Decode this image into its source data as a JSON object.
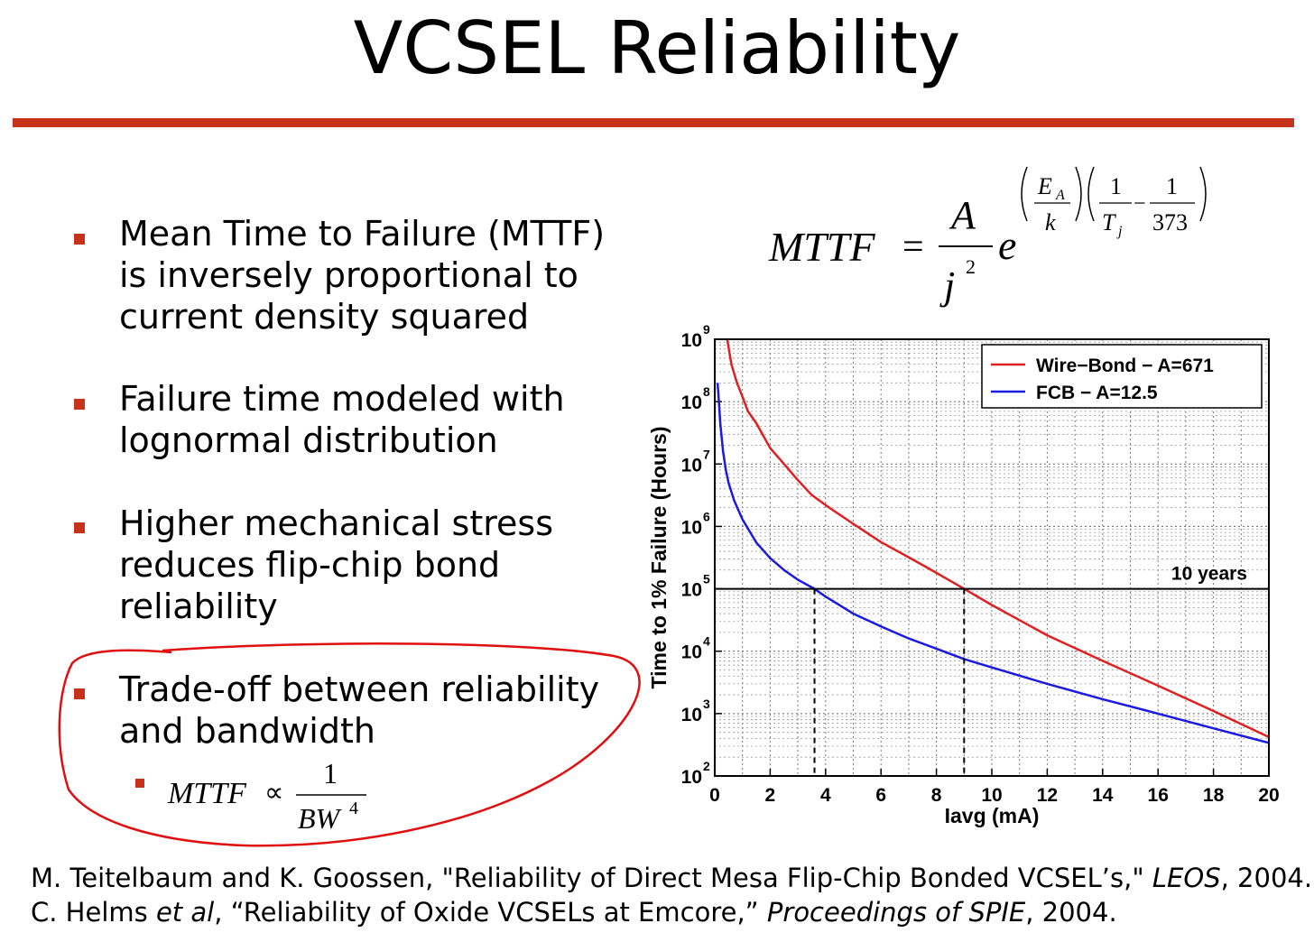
{
  "slide": {
    "title": "VCSEL Reliability",
    "accent_color": "#c8321a",
    "annotation_color": "#e01010"
  },
  "bullets": [
    {
      "lines": [
        "Mean Time to Failure (MTTF)",
        "is inversely proportional to",
        "current density squared"
      ]
    },
    {
      "lines": [
        "Failure time modeled with",
        "lognormal distribution"
      ]
    },
    {
      "lines": [
        "Higher mechanical stress",
        "reduces flip-chip bond",
        "reliability"
      ]
    },
    {
      "lines": [
        "Trade-off between reliability",
        "and bandwidth"
      ]
    }
  ],
  "sub_bullet": {
    "lhs": "MTTF",
    "relation": "∝",
    "numerator": "1",
    "denominator": "BW",
    "exponent": "4"
  },
  "formula": {
    "lhs": "MTTF",
    "equals": "=",
    "numerator": "A",
    "denominator": "j",
    "denominator_exp": "2",
    "base": "e",
    "ea_num": "E",
    "ea_sub": "A",
    "ea_den": "k",
    "f1_num": "1",
    "f1_den": "T",
    "f1_sub": "j",
    "minus": "−",
    "f2_num": "1",
    "f2_den": "373"
  },
  "references": [
    {
      "parts": [
        {
          "text": "M. Teitelbaum and K. Goossen, \"Reliability of Direct Mesa Flip-Chip Bonded VCSEL’s,\" ",
          "italic": false
        },
        {
          "text": "LEOS",
          "italic": true
        },
        {
          "text": ", 2004.",
          "italic": false
        }
      ]
    },
    {
      "parts": [
        {
          "text": "C. Helms ",
          "italic": false
        },
        {
          "text": "et al",
          "italic": true
        },
        {
          "text": ", “Reliability of Oxide VCSELs at Emcore,” ",
          "italic": false
        },
        {
          "text": "Proceedings of SPIE",
          "italic": true
        },
        {
          "text": ", 2004.",
          "italic": false
        }
      ]
    }
  ],
  "chart_data": {
    "type": "line",
    "xlabel": "Iavg (mA)",
    "ylabel": "Time to 1% Failure (Hours)",
    "xlim": [
      0,
      20
    ],
    "ylim_exponents": [
      2,
      9
    ],
    "y_scale": "log",
    "grid": true,
    "legend_position": "top-right",
    "x_ticks": [
      "0",
      "2",
      "4",
      "6",
      "8",
      "10",
      "12",
      "14",
      "16",
      "18",
      "20"
    ],
    "y_tick_base": "10",
    "y_tick_exponents": [
      "2",
      "3",
      "4",
      "5",
      "6",
      "7",
      "8",
      "9"
    ],
    "series": [
      {
        "name": "Wire−Bond − A=671",
        "color": "#e02020",
        "x": [
          0.45,
          0.6,
          0.8,
          1.0,
          1.2,
          1.5,
          2.0,
          2.5,
          3.0,
          3.5,
          4.0,
          5.0,
          6.0,
          7.0,
          8.0,
          9.0,
          10.0,
          12.0,
          14.0,
          16.0,
          18.0,
          20.0
        ],
        "y": [
          1000000000.0,
          400000000.0,
          200000000.0,
          120000000.0,
          70000000.0,
          45000000.0,
          18000000.0,
          10000000.0,
          5500000.0,
          3200000.0,
          2200000.0,
          1100000.0,
          560000.0,
          320000.0,
          180000.0,
          100000.0,
          55000.0,
          18000.0,
          7000.0,
          2800.0,
          1100.0,
          420.0
        ]
      },
      {
        "name": "FCB − A=12.5",
        "color": "#1a1ae0",
        "x": [
          0.1,
          0.15,
          0.2,
          0.3,
          0.4,
          0.5,
          0.7,
          1.0,
          1.5,
          2.0,
          2.5,
          3.0,
          3.6,
          4.0,
          5.0,
          6.0,
          7.0,
          8.0,
          9.0,
          10.0,
          12.0,
          14.0,
          16.0,
          18.0,
          20.0
        ],
        "y": [
          200000000.0,
          100000000.0,
          45000000.0,
          16000000.0,
          8000000.0,
          5000000.0,
          2600000.0,
          1300000.0,
          550000.0,
          310000.0,
          200000.0,
          140000.0,
          100000.0,
          75000.0,
          40000.0,
          25000.0,
          16000.0,
          11000.0,
          7500.0,
          5500.0,
          3000.0,
          1700.0,
          1000.0,
          580.0,
          340.0
        ]
      }
    ],
    "reference_line": {
      "label": "10 years",
      "y": 100000.0
    },
    "markers": [
      {
        "x": 3.6,
        "y": 100000.0
      },
      {
        "x": 9.0,
        "y": 100000.0
      }
    ]
  }
}
